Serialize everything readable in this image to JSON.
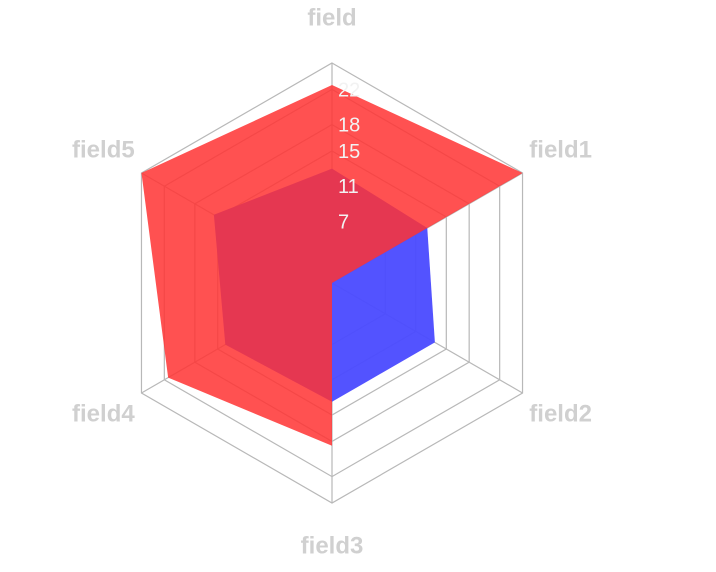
{
  "chart_data": {
    "type": "radar",
    "title": "",
    "axes": [
      "field",
      "field1",
      "field2",
      "field3",
      "field4",
      "field5"
    ],
    "ticks": [
      7,
      11,
      15,
      18,
      22
    ],
    "rmax": 25,
    "grid": true,
    "legend": "none",
    "series": [
      {
        "color": "#4a4aff",
        "opacity": 0.95,
        "values": [
          13,
          12.5,
          13.5,
          13.5,
          14,
          15.5
        ]
      },
      {
        "color": "#ff3333",
        "opacity": 0.85,
        "values": [
          22.5,
          25,
          0,
          18.5,
          21.5,
          25
        ]
      }
    ]
  }
}
